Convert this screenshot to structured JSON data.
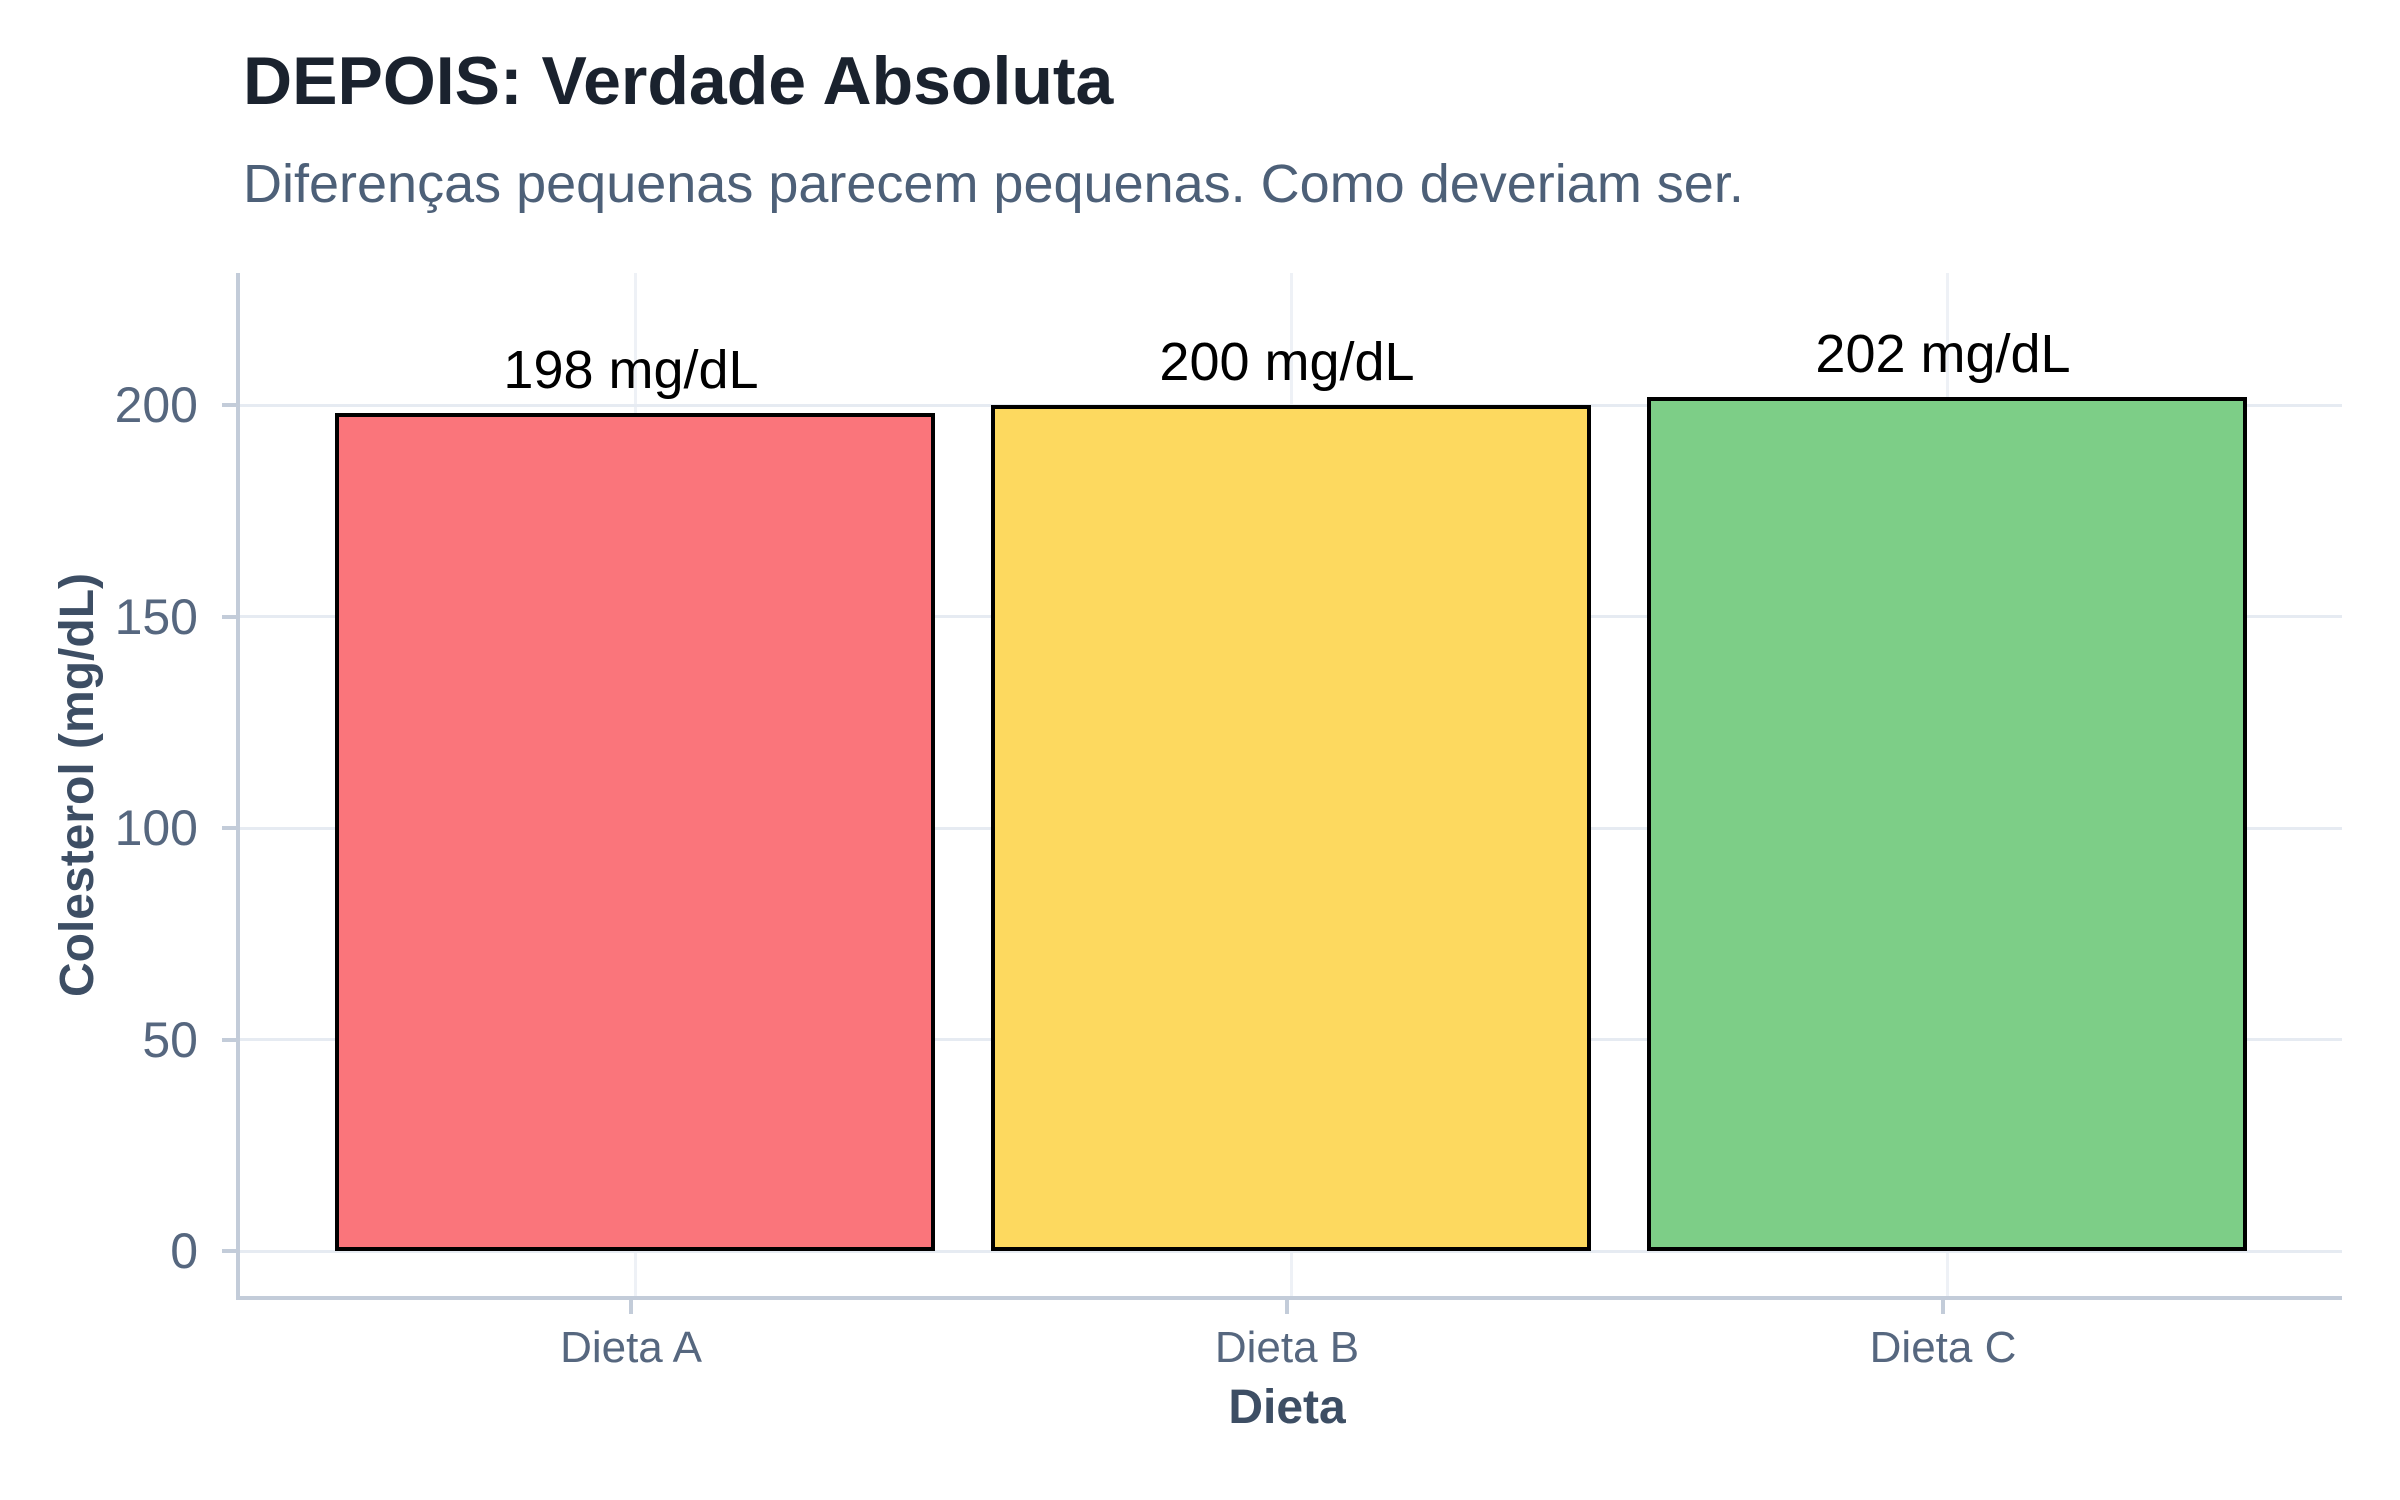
{
  "header": {
    "title": "DEPOIS: Verdade Absoluta",
    "subtitle": "Diferenças pequenas parecem pequenas. Como deveriam ser."
  },
  "chart_data": {
    "type": "bar",
    "title": "DEPOIS: Verdade Absoluta",
    "subtitle": "Diferenças pequenas parecem pequenas. Como deveriam ser.",
    "categories": [
      "Dieta A",
      "Dieta B",
      "Dieta C"
    ],
    "values": [
      198,
      200,
      202
    ],
    "bar_labels": [
      "198 mg/dL",
      "200 mg/dL",
      "202 mg/dL"
    ],
    "bar_colors": [
      "#FA757B",
      "#FDD95F",
      "#7DCE87"
    ],
    "bar_edge_color": "#000000",
    "xlabel": "Dieta",
    "ylabel": "Colesterol (mg/dL)",
    "y_ticks": [
      0,
      50,
      100,
      150,
      200
    ],
    "ylim": [
      -10,
      231
    ],
    "grid": "horizontal major gridlines + vertical gridline at each category",
    "legend": "none",
    "colors": {
      "title_text": "#1a222e",
      "subtitle_text": "#4d6078",
      "tick_label_text": "#56677f",
      "axis_title_text": "#3d4e64",
      "spine": "#c3ccd9",
      "gridline_h": "#e6ebf2",
      "gridline_v": "#eef1f6",
      "background": "#ffffff",
      "bar_label_text": "#000000"
    }
  }
}
